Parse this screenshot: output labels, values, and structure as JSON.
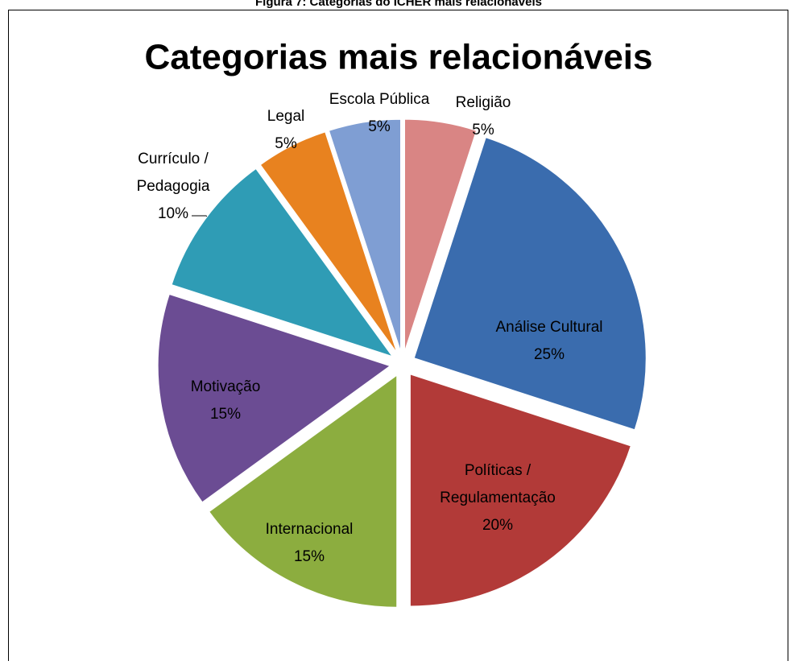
{
  "caption": "Figura 7: Categorias do ICHER mais relacionáveis",
  "chart_data": {
    "type": "pie",
    "title": "Categorias mais relacionáveis",
    "categories": [
      "Religião",
      "Análise Cultural",
      "Políticas / Regulamentação",
      "Internacional",
      "Motivação",
      "Currículo / Pedagogia",
      "Legal",
      "Escola Pública"
    ],
    "values": [
      5,
      25,
      20,
      15,
      15,
      10,
      5,
      5
    ],
    "value_labels": [
      "5%",
      "25%",
      "20%",
      "15%",
      "15%",
      "10%",
      "5%",
      "5%"
    ],
    "colors": [
      "#d98584",
      "#3a6cae",
      "#b23a38",
      "#8cad3f",
      "#6b4c93",
      "#2f9cb5",
      "#e8821f",
      "#7f9ed3"
    ]
  }
}
